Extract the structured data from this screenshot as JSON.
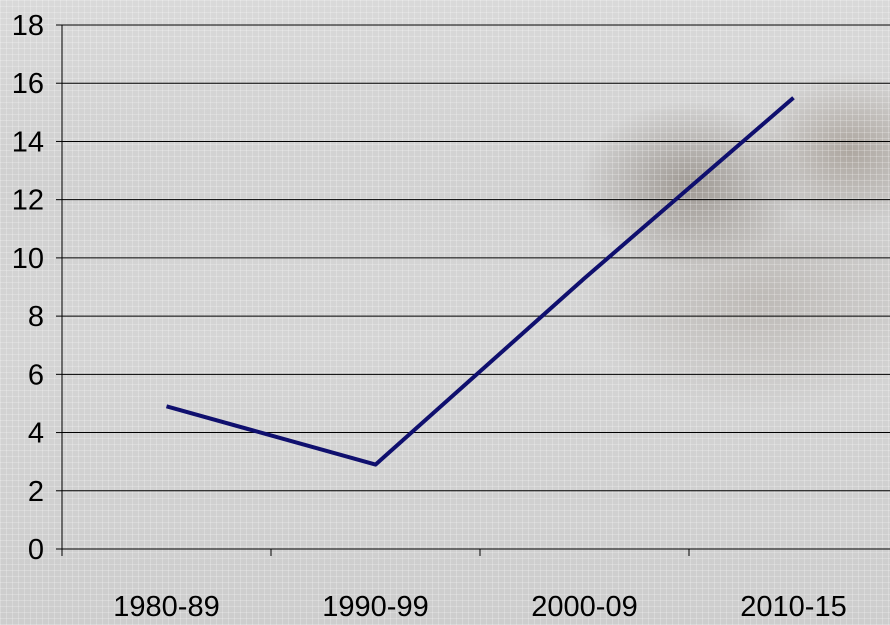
{
  "chart_data": {
    "type": "line",
    "title": "",
    "xlabel": "",
    "ylabel": "",
    "categories": [
      "1980-89",
      "1990-99",
      "2000-09",
      "2010-15"
    ],
    "series": [
      {
        "values": [
          4.9,
          2.9,
          9.3,
          15.5
        ],
        "color": "#0f0f6e"
      }
    ],
    "ylim": [
      0,
      18
    ],
    "yticks": [
      0,
      2,
      4,
      6,
      8,
      10,
      12,
      14,
      16,
      18
    ],
    "grid": "horizontal",
    "legend": "none"
  }
}
